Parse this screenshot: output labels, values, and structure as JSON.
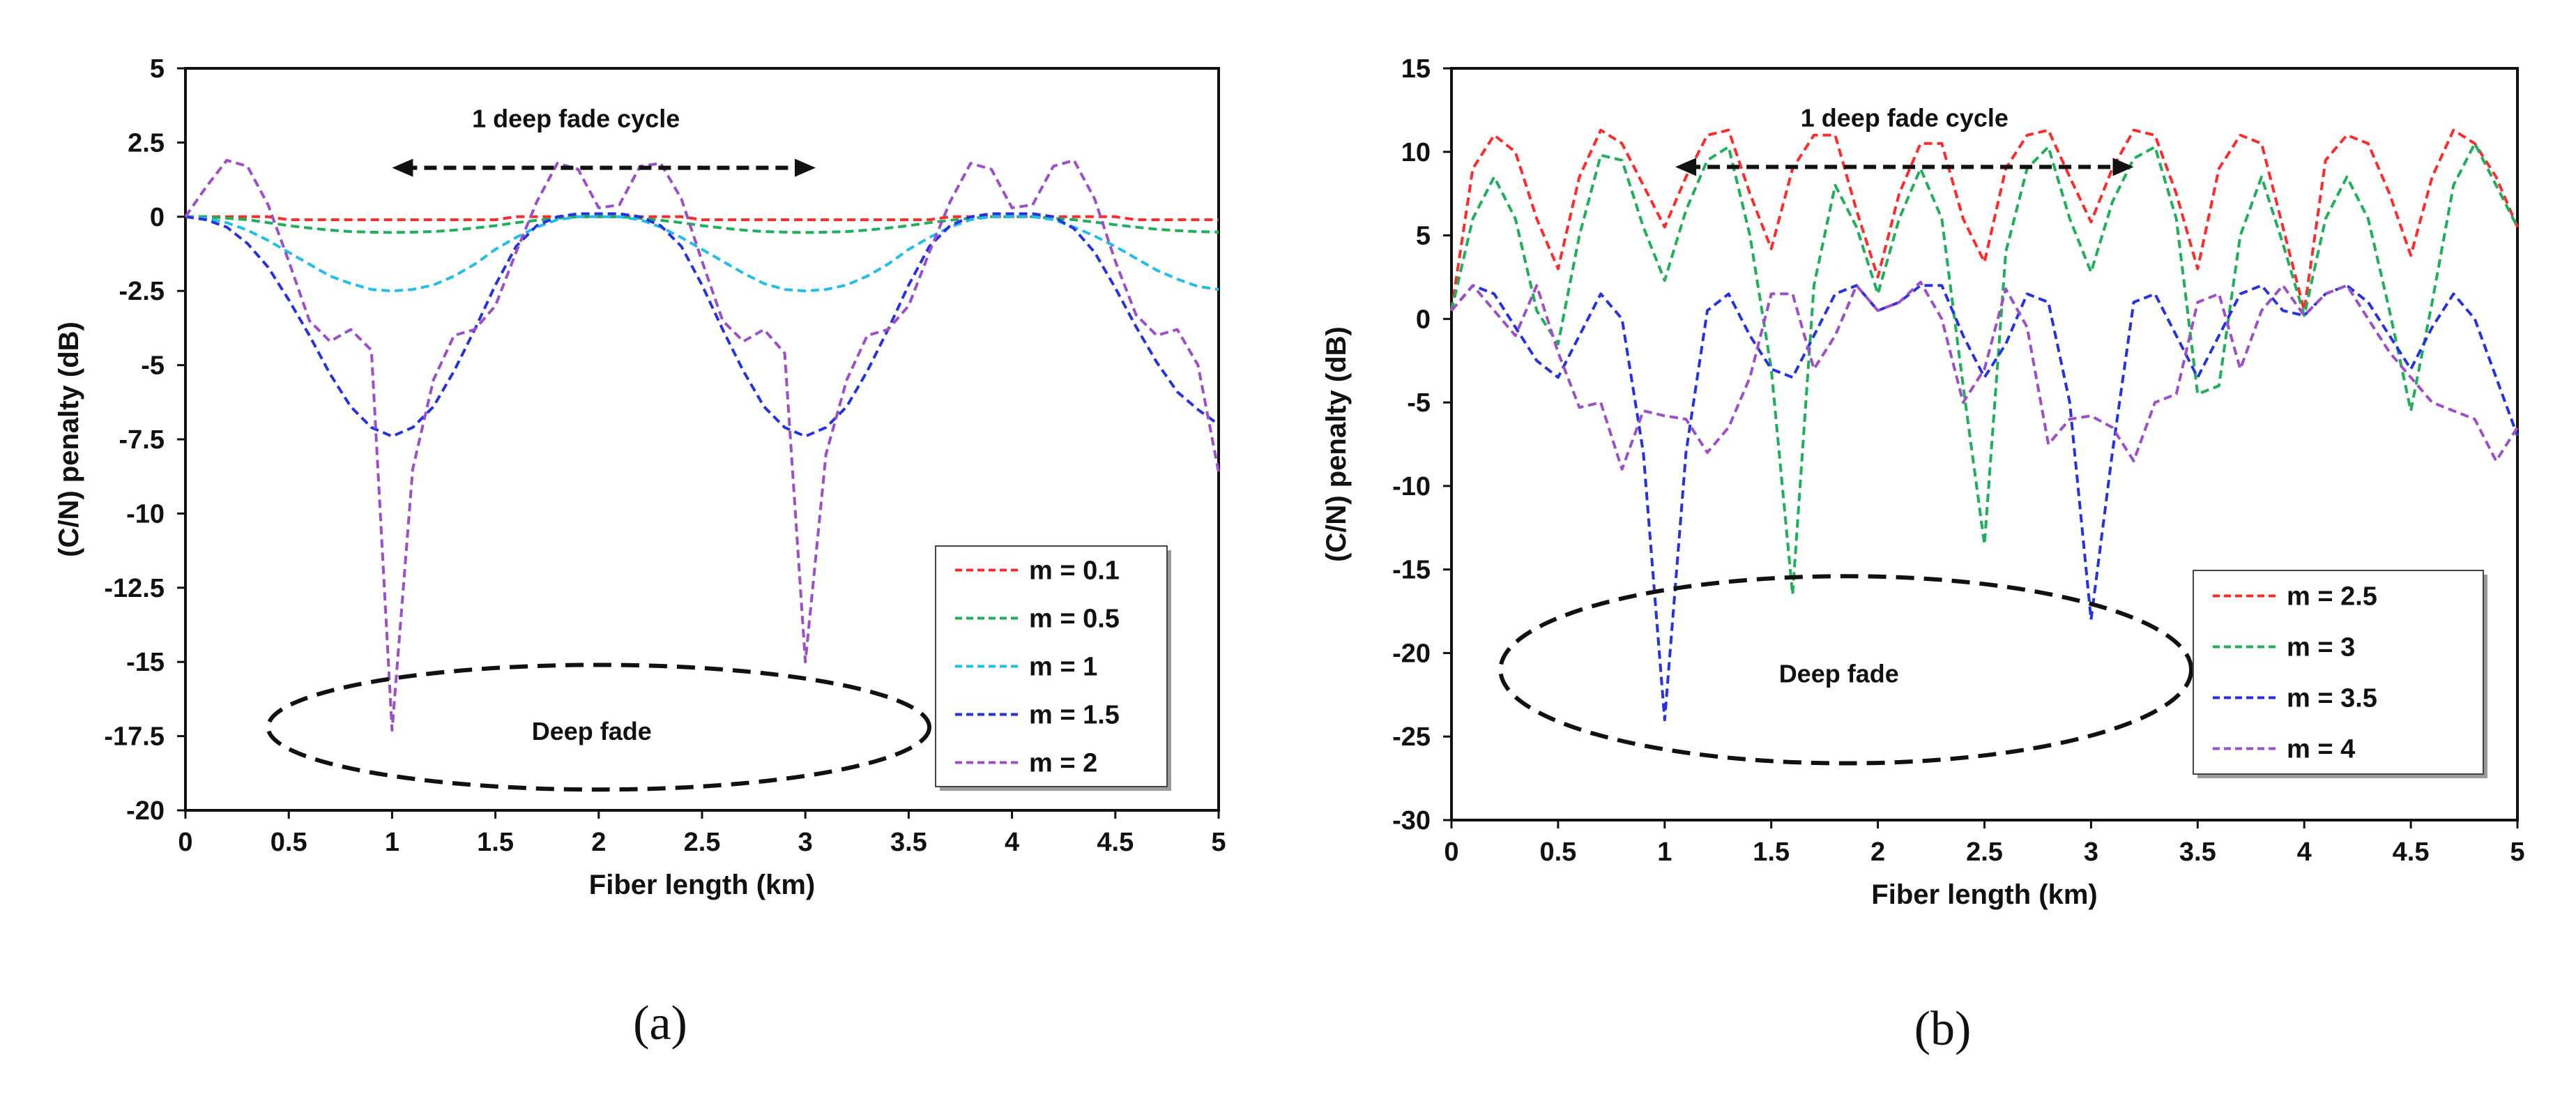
{
  "chart_data": [
    {
      "type": "line",
      "panel_label": "(a)",
      "xlabel": "Fiber length (km)",
      "ylabel": "(C/N) penalty (dB)",
      "xlim": [
        0,
        5
      ],
      "ylim": [
        -20,
        5
      ],
      "xticks": [
        0,
        0.5,
        1,
        1.5,
        2,
        2.5,
        3,
        3.5,
        4,
        4.5,
        5
      ],
      "xtick_labels": [
        "0",
        "0.5",
        "1",
        "1.5",
        "2",
        "2.5",
        "3",
        "3.5",
        "4",
        "4.5",
        "5"
      ],
      "yticks": [
        5,
        2.5,
        0,
        -2.5,
        -5,
        -7.5,
        -10,
        -12.5,
        -15,
        -17.5,
        -20
      ],
      "ytick_labels": [
        "5",
        "2.5",
        "0",
        "-2.5",
        "-5",
        "-7.5",
        "-10",
        "-12.5",
        "-15",
        "-17.5",
        "-20"
      ],
      "legend_position": "bottom-right",
      "annotations": {
        "cycle": {
          "text": "1 deep fade cycle",
          "x_from": 1.0,
          "x_to": 3.05,
          "y": 1.65
        },
        "fade": {
          "text": "Deep fade",
          "cx": 2.0,
          "cy": -17.2,
          "rx": 1.6,
          "ry": 2.1
        }
      },
      "x": [
        0,
        0.1,
        0.2,
        0.3,
        0.4,
        0.5,
        0.6,
        0.7,
        0.8,
        0.9,
        1,
        1.1,
        1.2,
        1.3,
        1.4,
        1.5,
        1.6,
        1.7,
        1.8,
        1.9,
        2,
        2.1,
        2.2,
        2.3,
        2.4,
        2.5,
        2.6,
        2.7,
        2.8,
        2.9,
        3,
        3.1,
        3.2,
        3.3,
        3.4,
        3.5,
        3.6,
        3.7,
        3.8,
        3.9,
        4,
        4.1,
        4.2,
        4.3,
        4.4,
        4.5,
        4.6,
        4.7,
        4.8,
        4.9,
        5
      ],
      "series": [
        {
          "name": "m = 0.1",
          "color": "#ff2a2a",
          "values": [
            0,
            0,
            0,
            0,
            0,
            -0.1,
            -0.1,
            -0.1,
            -0.1,
            -0.1,
            -0.1,
            -0.1,
            -0.1,
            -0.1,
            -0.1,
            -0.1,
            0,
            0,
            0,
            0,
            0,
            0,
            0,
            0,
            0,
            -0.1,
            -0.1,
            -0.1,
            -0.1,
            -0.1,
            -0.1,
            -0.1,
            -0.1,
            -0.1,
            -0.1,
            -0.1,
            -0.1,
            0,
            0,
            0,
            0,
            0,
            0,
            0,
            0,
            0,
            -0.1,
            -0.1,
            -0.1,
            -0.1,
            -0.1
          ]
        },
        {
          "name": "m = 0.5",
          "color": "#1fae5a",
          "values": [
            0,
            0,
            -0.05,
            -0.1,
            -0.2,
            -0.3,
            -0.38,
            -0.45,
            -0.5,
            -0.52,
            -0.53,
            -0.52,
            -0.5,
            -0.45,
            -0.38,
            -0.3,
            -0.2,
            -0.12,
            -0.05,
            0,
            0,
            0,
            -0.05,
            -0.12,
            -0.2,
            -0.3,
            -0.38,
            -0.45,
            -0.5,
            -0.52,
            -0.53,
            -0.52,
            -0.5,
            -0.45,
            -0.38,
            -0.3,
            -0.2,
            -0.12,
            -0.05,
            0,
            0,
            0,
            -0.05,
            -0.1,
            -0.18,
            -0.27,
            -0.35,
            -0.42,
            -0.47,
            -0.5,
            -0.52
          ]
        },
        {
          "name": "m = 1",
          "color": "#22bde8",
          "values": [
            0,
            -0.05,
            -0.2,
            -0.45,
            -0.8,
            -1.2,
            -1.6,
            -2.0,
            -2.25,
            -2.45,
            -2.5,
            -2.45,
            -2.3,
            -2.0,
            -1.6,
            -1.1,
            -0.7,
            -0.35,
            -0.1,
            0,
            0,
            0,
            -0.1,
            -0.35,
            -0.7,
            -1.1,
            -1.5,
            -1.9,
            -2.25,
            -2.45,
            -2.5,
            -2.45,
            -2.3,
            -2.0,
            -1.6,
            -1.1,
            -0.7,
            -0.35,
            -0.1,
            0,
            0,
            0,
            -0.1,
            -0.35,
            -0.65,
            -1.0,
            -1.4,
            -1.8,
            -2.1,
            -2.35,
            -2.45
          ]
        },
        {
          "name": "m = 1.5",
          "color": "#2632e0",
          "values": [
            0,
            -0.1,
            -0.35,
            -0.9,
            -1.7,
            -2.8,
            -4.0,
            -5.3,
            -6.4,
            -7.1,
            -7.4,
            -7.1,
            -6.4,
            -5.2,
            -3.8,
            -2.3,
            -1.0,
            -0.3,
            0,
            0.1,
            0.1,
            0.1,
            0,
            -0.3,
            -1.0,
            -2.3,
            -3.8,
            -5.2,
            -6.4,
            -7.1,
            -7.4,
            -7.1,
            -6.4,
            -5.2,
            -3.8,
            -2.3,
            -1.0,
            -0.3,
            0,
            0.1,
            0.1,
            0.1,
            0,
            -0.4,
            -1.2,
            -2.4,
            -3.7,
            -4.9,
            -5.9,
            -6.5,
            -7.0
          ]
        },
        {
          "name": "m = 2",
          "color": "#9b4fc8",
          "values": [
            0,
            1.0,
            1.9,
            1.7,
            0.4,
            -1.5,
            -3.5,
            -4.2,
            -3.8,
            -4.5,
            -17.3,
            -8.5,
            -5.5,
            -4.0,
            -3.8,
            -3.0,
            -1.2,
            0.5,
            1.8,
            1.6,
            0.3,
            0.4,
            1.7,
            1.8,
            0.6,
            -1.5,
            -3.5,
            -4.2,
            -3.8,
            -4.6,
            -15.0,
            -8.0,
            -5.5,
            -4.0,
            -3.8,
            -3.0,
            -1.2,
            0.5,
            1.8,
            1.6,
            0.3,
            0.4,
            1.7,
            1.9,
            0.6,
            -1.5,
            -3.3,
            -4.0,
            -3.8,
            -5.0,
            -8.6
          ]
        }
      ]
    },
    {
      "type": "line",
      "panel_label": "(b)",
      "xlabel": "Fiber length (km)",
      "ylabel": "(C/N) penalty (dB)",
      "xlim": [
        0,
        5
      ],
      "ylim": [
        -30,
        15
      ],
      "xticks": [
        0,
        0.5,
        1,
        1.5,
        2,
        2.5,
        3,
        3.5,
        4,
        4.5,
        5
      ],
      "xtick_labels": [
        "0",
        "0.5",
        "1",
        "1.5",
        "2",
        "2.5",
        "3",
        "3.5",
        "4",
        "4.5",
        "5"
      ],
      "yticks": [
        15,
        10,
        5,
        0,
        -5,
        -10,
        -15,
        -20,
        -25,
        -30
      ],
      "ytick_labels": [
        "15",
        "10",
        "5",
        "0",
        "-5",
        "-10",
        "-15",
        "-20",
        "-25",
        "-30"
      ],
      "legend_position": "bottom-right",
      "annotations": {
        "cycle": {
          "text": "1 deep fade cycle",
          "x_from": 1.05,
          "x_to": 3.2,
          "y": 9.1
        },
        "fade": {
          "text": "Deep fade",
          "cx": 1.85,
          "cy": -21.0,
          "rx": 1.62,
          "ry": 5.6
        }
      },
      "x": [
        0,
        0.1,
        0.2,
        0.3,
        0.4,
        0.5,
        0.6,
        0.7,
        0.8,
        0.9,
        1,
        1.1,
        1.2,
        1.3,
        1.4,
        1.5,
        1.6,
        1.7,
        1.8,
        1.9,
        2,
        2.1,
        2.2,
        2.3,
        2.4,
        2.5,
        2.6,
        2.7,
        2.8,
        2.9,
        3,
        3.1,
        3.2,
        3.3,
        3.4,
        3.5,
        3.6,
        3.7,
        3.8,
        3.9,
        4,
        4.1,
        4.2,
        4.3,
        4.4,
        4.5,
        4.6,
        4.7,
        4.8,
        4.9,
        5
      ],
      "series": [
        {
          "name": "m = 2.5",
          "color": "#ff2a2a",
          "values": [
            0.5,
            9,
            11,
            10,
            6,
            3,
            8.5,
            11.3,
            10.5,
            8,
            5.5,
            8.5,
            11,
            11.3,
            7.5,
            4.2,
            9,
            11,
            11,
            6.5,
            2.5,
            7.5,
            10.5,
            10.5,
            6,
            3.4,
            9,
            11,
            11.3,
            8.5,
            5.8,
            9,
            11.3,
            11,
            7.5,
            3,
            9,
            11,
            10.5,
            5.5,
            0.5,
            9.5,
            11,
            10.5,
            7.5,
            3.8,
            8.5,
            11.3,
            10.5,
            8.5,
            5.5
          ]
        },
        {
          "name": "m = 3",
          "color": "#1fae5a",
          "values": [
            0.5,
            6,
            8.5,
            6,
            0.5,
            -1.5,
            5,
            9.8,
            9.5,
            5.5,
            2.3,
            6.5,
            9.5,
            10.3,
            5,
            -3,
            -16.5,
            2,
            8,
            5.5,
            1.5,
            6,
            9,
            6,
            -4,
            -13.5,
            4,
            9,
            10.3,
            6,
            2.8,
            7,
            9.6,
            10.3,
            6,
            -4.5,
            -4,
            5,
            8.5,
            4.5,
            0.2,
            6,
            8.5,
            6,
            0.5,
            -5.5,
            1,
            8,
            10.5,
            8,
            5.5
          ]
        },
        {
          "name": "m = 3.5",
          "color": "#2632e0",
          "values": [
            0.5,
            2,
            1.5,
            -0.5,
            -2.5,
            -3.5,
            -1,
            1.5,
            0,
            -8,
            -24,
            -8,
            0.5,
            1.5,
            -1,
            -3,
            -3.5,
            -1,
            1.5,
            2,
            0.5,
            1,
            2,
            2,
            -1,
            -3.5,
            -1.5,
            1.5,
            1,
            -5,
            -18,
            -8,
            1,
            1.5,
            -1,
            -3.5,
            -1,
            1.5,
            2,
            0.5,
            0.2,
            1.5,
            2,
            1,
            -1,
            -3,
            -0.5,
            1.5,
            0,
            -3.5,
            -7
          ]
        },
        {
          "name": "m = 4",
          "color": "#9b4fc8",
          "values": [
            0.5,
            2,
            0.5,
            -1,
            2,
            -2,
            -5.3,
            -5,
            -9,
            -5.5,
            -5.8,
            -6,
            -8,
            -6.5,
            -3.5,
            1.5,
            1.5,
            -3,
            -1,
            2,
            0.5,
            1,
            2.2,
            0,
            -5,
            -3,
            1.8,
            -0.5,
            -7.5,
            -6,
            -5.8,
            -6.5,
            -8.5,
            -5,
            -4.5,
            1,
            1.5,
            -3,
            0.5,
            2,
            0.2,
            1.5,
            2,
            0,
            -2,
            -3.5,
            -5,
            -5.5,
            -6,
            -8.5,
            -6.5
          ]
        }
      ]
    }
  ]
}
